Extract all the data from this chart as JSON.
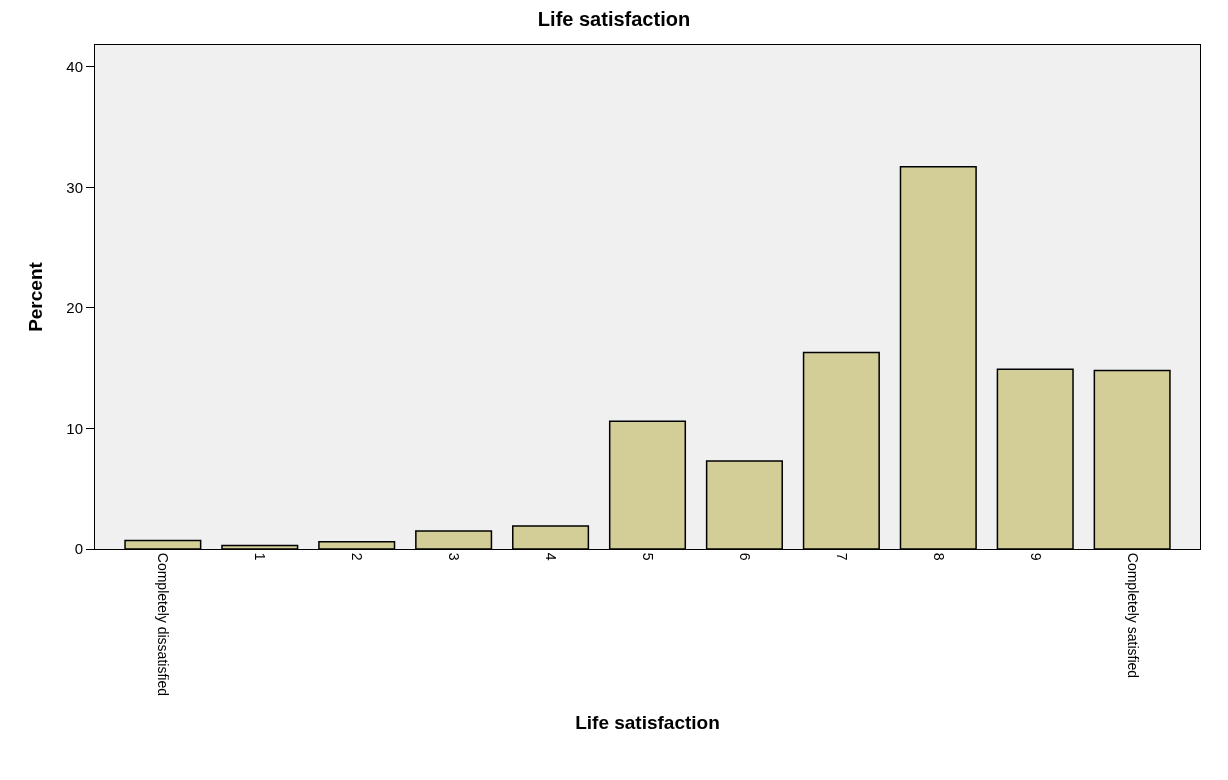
{
  "chart_data": {
    "type": "bar",
    "title": "Life satisfaction",
    "xlabel": "Life satisfaction",
    "ylabel": "Percent",
    "categories": [
      "Completely dissatisfied",
      "1",
      "2",
      "3",
      "4",
      "5",
      "6",
      "7",
      "8",
      "9",
      "Completely satisfied"
    ],
    "values": [
      0.7,
      0.3,
      0.6,
      1.5,
      1.9,
      10.6,
      7.3,
      16.3,
      31.7,
      14.9,
      14.8
    ],
    "color": "#d3ce97",
    "ylim": [
      0,
      41.8
    ],
    "yticks": [
      0,
      10,
      20,
      30,
      40
    ],
    "grid": false
  }
}
